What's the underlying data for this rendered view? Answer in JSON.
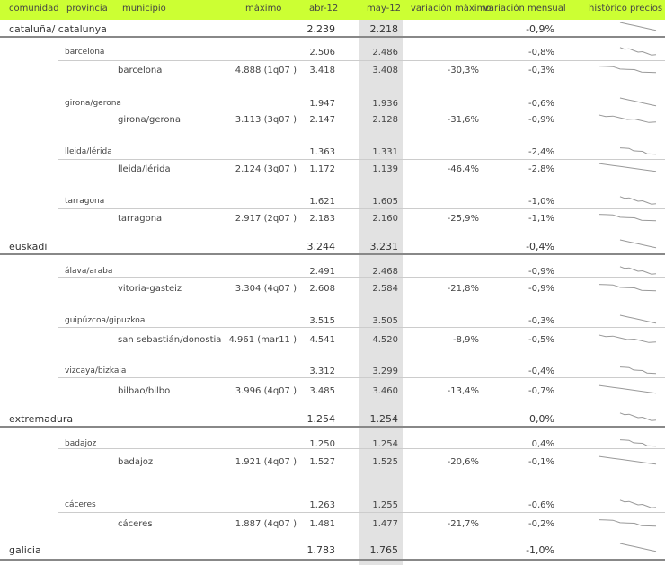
{
  "header": {
    "comunidad": "comunidad",
    "provincia": "provincia",
    "municipio": "municipio",
    "maximo": "máximo",
    "abr": "abr-12",
    "may": "may-12",
    "var_max": "variación máximo",
    "var_mensual": "variación mensual",
    "historico": "histórico precios"
  },
  "colors": {
    "header_bg": "#ccff33",
    "highlight_col": "#e2e2e2",
    "negative": "#ff3333"
  },
  "rows": [
    {
      "level": 1,
      "name": "cataluña/ catalunya",
      "abr": "2.239",
      "may": "2.218",
      "var_max": "",
      "var_mensual": "-0,9%",
      "neg": true
    },
    {
      "level": 2,
      "name": "barcelona",
      "abr": "2.506",
      "may": "2.486",
      "var_max": "",
      "var_mensual": "-0,8%",
      "neg": true
    },
    {
      "level": 3,
      "name": "barcelona",
      "maximo": "4.888 (1q07 )",
      "abr": "3.418",
      "may": "3.408",
      "var_max": "-30,3%",
      "var_mensual": "-0,3%",
      "neg": true
    },
    {
      "level": 2,
      "name": "girona/gerona",
      "abr": "1.947",
      "may": "1.936",
      "var_max": "",
      "var_mensual": "-0,6%",
      "neg": true
    },
    {
      "level": 3,
      "name": "girona/gerona",
      "maximo": "3.113 (3q07 )",
      "abr": "2.147",
      "may": "2.128",
      "var_max": "-31,6%",
      "var_mensual": "-0,9%",
      "neg": true
    },
    {
      "level": 2,
      "name": "lleida/lérida",
      "abr": "1.363",
      "may": "1.331",
      "var_max": "",
      "var_mensual": "-2,4%",
      "neg": true
    },
    {
      "level": 3,
      "name": "lleida/lérida",
      "maximo": "2.124 (3q07 )",
      "abr": "1.172",
      "may": "1.139",
      "var_max": "-46,4%",
      "var_mensual": "-2,8%",
      "neg": true
    },
    {
      "level": 2,
      "name": "tarragona",
      "abr": "1.621",
      "may": "1.605",
      "var_max": "",
      "var_mensual": "-1,0%",
      "neg": true
    },
    {
      "level": 3,
      "name": "tarragona",
      "maximo": "2.917 (2q07 )",
      "abr": "2.183",
      "may": "2.160",
      "var_max": "-25,9%",
      "var_mensual": "-1,1%",
      "neg": true
    },
    {
      "level": 1,
      "name": "euskadi",
      "abr": "3.244",
      "may": "3.231",
      "var_max": "",
      "var_mensual": "-0,4%",
      "neg": true
    },
    {
      "level": 2,
      "name": "álava/araba",
      "abr": "2.491",
      "may": "2.468",
      "var_max": "",
      "var_mensual": "-0,9%",
      "neg": true
    },
    {
      "level": 3,
      "name": "vitoria-gasteiz",
      "maximo": "3.304 (4q07 )",
      "abr": "2.608",
      "may": "2.584",
      "var_max": "-21,8%",
      "var_mensual": "-0,9%",
      "neg": true
    },
    {
      "level": 2,
      "name": "guipúzcoa/gipuzkoa",
      "abr": "3.515",
      "may": "3.505",
      "var_max": "",
      "var_mensual": "-0,3%",
      "neg": true
    },
    {
      "level": 3,
      "name": "san sebastián/donostia",
      "maximo": "4.961 (mar11 )",
      "abr": "4.541",
      "may": "4.520",
      "var_max": "-8,9%",
      "var_mensual": "-0,5%",
      "neg": true
    },
    {
      "level": 2,
      "name": "vizcaya/bizkaia",
      "abr": "3.312",
      "may": "3.299",
      "var_max": "",
      "var_mensual": "-0,4%",
      "neg": true
    },
    {
      "level": 3,
      "name": "bilbao/bilbo",
      "maximo": "3.996 (4q07 )",
      "abr": "3.485",
      "may": "3.460",
      "var_max": "-13,4%",
      "var_mensual": "-0,7%",
      "neg": true
    },
    {
      "level": 1,
      "name": "extremadura",
      "abr": "1.254",
      "may": "1.254",
      "var_max": "",
      "var_mensual": "0,0%",
      "neg": false
    },
    {
      "level": 2,
      "name": "badajoz",
      "abr": "1.250",
      "may": "1.254",
      "var_max": "",
      "var_mensual": "0,4%",
      "neg": false
    },
    {
      "level": 3,
      "name": "badajoz",
      "maximo": "1.921 (4q07 )",
      "abr": "1.527",
      "may": "1.525",
      "var_max": "-20,6%",
      "var_mensual": "-0,1%",
      "neg": true
    },
    {
      "level": 2,
      "name": "cáceres",
      "abr": "1.263",
      "may": "1.255",
      "var_max": "",
      "var_mensual": "-0,6%",
      "neg": true
    },
    {
      "level": 3,
      "name": "cáceres",
      "maximo": "1.887 (4q07 )",
      "abr": "1.481",
      "may": "1.477",
      "var_max": "-21,7%",
      "var_mensual": "-0,2%",
      "neg": true
    },
    {
      "level": 1,
      "name": "galicia",
      "abr": "1.783",
      "may": "1.765",
      "var_max": "",
      "var_mensual": "-1,0%",
      "neg": true
    }
  ]
}
